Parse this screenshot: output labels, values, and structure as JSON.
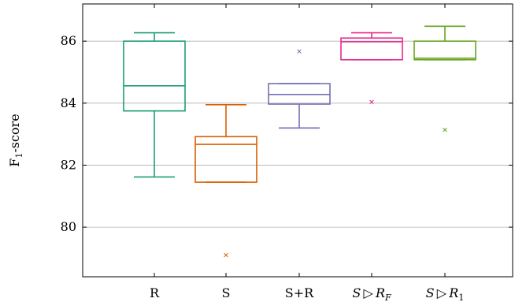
{
  "chart_data": {
    "type": "box",
    "title": "",
    "xlabel": "",
    "ylabel": "F",
    "ylabel_sub": "1",
    "ylabel_rest": "-score",
    "ylim": [
      78.4,
      87.2
    ],
    "yticks": [
      80,
      82,
      84,
      86
    ],
    "grid": "horizontal",
    "legend": "none",
    "categories": [
      {
        "label": "R",
        "color": "#1b9e77"
      },
      {
        "label": "S",
        "color": "#d95f02"
      },
      {
        "label": "S+R",
        "color": "#7570b3"
      },
      {
        "label": "S▷R_F",
        "main": "S ▷ R",
        "sub": "F",
        "italic": true,
        "color": "#e7298a"
      },
      {
        "label": "S▷R_1",
        "main": "S ▷ R",
        "sub": "1",
        "italic": true,
        "color": "#66a61e"
      }
    ],
    "boxes": [
      {
        "whisker_low": 81.62,
        "q1": 83.75,
        "median": 84.56,
        "q3": 86.0,
        "whisker_high": 86.27,
        "outliers": []
      },
      {
        "whisker_low": 81.45,
        "q1": 81.45,
        "median": 82.67,
        "q3": 82.92,
        "whisker_high": 83.95,
        "outliers": [
          79.1
        ]
      },
      {
        "whisker_low": 83.2,
        "q1": 83.97,
        "median": 84.28,
        "q3": 84.63,
        "whisker_high": 84.63,
        "outliers": [
          85.67
        ]
      },
      {
        "whisker_low": 85.4,
        "q1": 85.4,
        "median": 85.98,
        "q3": 86.1,
        "whisker_high": 86.27,
        "outliers": [
          84.04
        ]
      },
      {
        "whisker_low": 85.4,
        "q1": 85.4,
        "median": 85.45,
        "q3": 86.0,
        "whisker_high": 86.48,
        "outliers": [
          83.14
        ]
      }
    ]
  }
}
